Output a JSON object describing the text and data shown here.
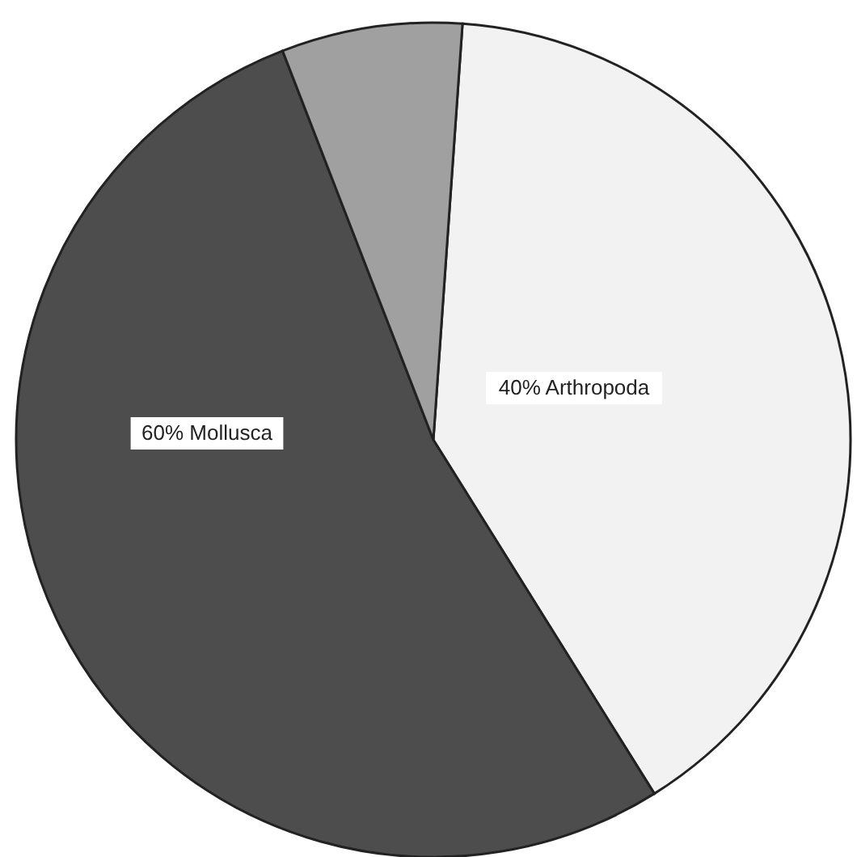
{
  "chart_data": {
    "type": "pie",
    "categories": [
      "40% Arthropoda",
      "60% Mollusca",
      null
    ],
    "values": [
      40,
      53,
      7
    ],
    "colors": [
      "#f2f2f2",
      "#4d4d4d",
      "#a0a0a0"
    ]
  }
}
